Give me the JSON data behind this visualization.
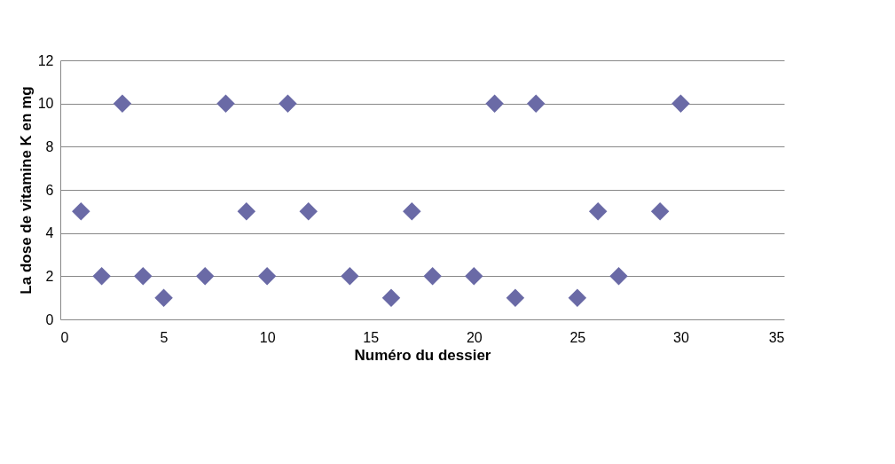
{
  "chart_data": {
    "type": "scatter",
    "xlabel": "Numéro du dessier",
    "ylabel": "La dose de vitamine K en mg",
    "x": [
      1,
      2,
      3,
      4,
      5,
      7,
      8,
      9,
      10,
      11,
      12,
      14,
      16,
      17,
      18,
      20,
      21,
      22,
      23,
      25,
      26,
      27,
      29,
      30
    ],
    "series": [
      {
        "color": "#6a6aa6",
        "values": [
          5,
          2,
          10,
          2,
          1,
          2,
          10,
          5,
          2,
          10,
          5,
          2,
          1,
          5,
          2,
          2,
          10,
          1,
          10,
          1,
          5,
          2,
          5,
          10
        ]
      }
    ],
    "xlim": [
      0,
      35
    ],
    "xticks": [
      0,
      5,
      10,
      15,
      20,
      25,
      30,
      35
    ],
    "ylim": [
      0,
      12
    ],
    "yticks": [
      0,
      2,
      4,
      6,
      8,
      10,
      12
    ],
    "grid": "y",
    "marker": "diamond"
  }
}
